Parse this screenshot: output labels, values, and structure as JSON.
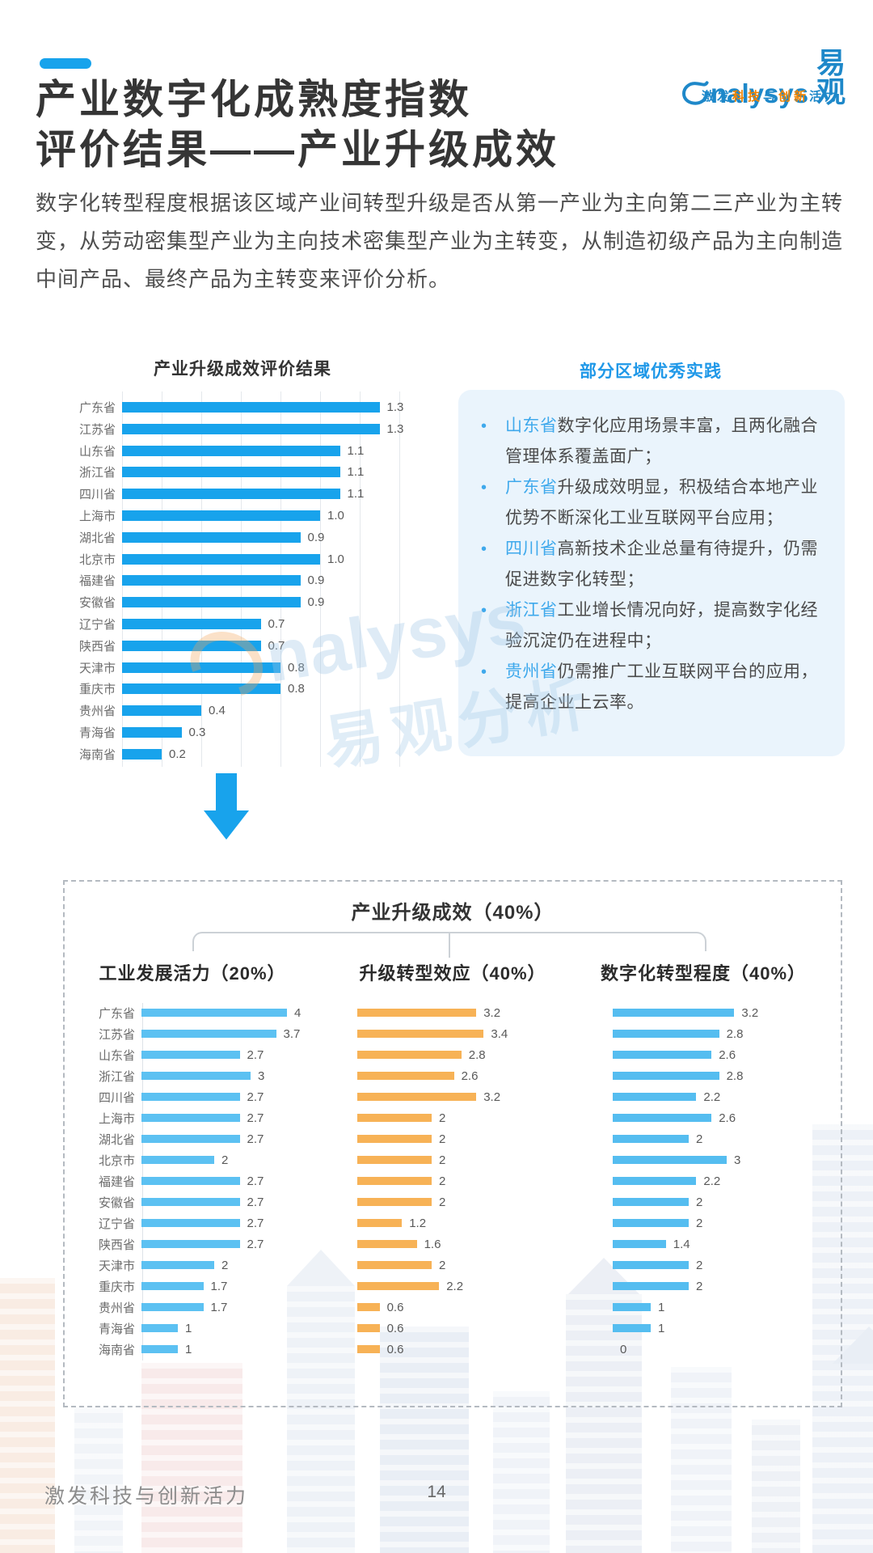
{
  "header": {
    "title_line1": "产业数字化成熟度指数",
    "title_line2": "评价结果——产业升级成效"
  },
  "logo": {
    "text_en": "nalysys",
    "text_cn": "易观",
    "tagline": [
      {
        "text": "激发",
        "color": "blue"
      },
      {
        "text": "科技",
        "color": "orange"
      },
      {
        "text": "与",
        "color": "blue"
      },
      {
        "text": "创新",
        "color": "orange"
      },
      {
        "text": "活力",
        "color": "blue"
      }
    ]
  },
  "intro": "数字化转型程度根据该区域产业间转型升级是否从第一产业为主向第二三产业为主转变，从劳动密集型产业为主向技术密集型产业为主转变，从制造初级产品为主向制造中间产品、最终产品为主转变来评价分析。",
  "practices": {
    "title": "部分区域优秀实践",
    "items": [
      {
        "highlight": "山东省",
        "text": "数字化应用场景丰富，且两化融合管理体系覆盖面广；"
      },
      {
        "highlight": "广东省",
        "text": "升级成效明显，积极结合本地产业优势不断深化工业互联网平台应用；"
      },
      {
        "highlight": "四川省",
        "text": "高新技术企业总量有待提升，仍需促进数字化转型；"
      },
      {
        "highlight": "浙江省",
        "text": "工业增长情况向好，提高数字化经验沉淀仍在进程中；"
      },
      {
        "highlight": "贵州省",
        "text": "仍需推广工业互联网平台的应用，提高企业上云率。"
      }
    ]
  },
  "breakdown": {
    "box_title": "产业升级成效（40%）",
    "column_titles": [
      "工业发展活力（20%）",
      "升级转型效应（40%）",
      "数字化转型程度（40%）"
    ]
  },
  "watermark": {
    "en": "nalysys",
    "cn": "易观分析"
  },
  "footer": {
    "slogan": "激发科技与创新活力",
    "page_number": "14"
  },
  "provinces": [
    "广东省",
    "江苏省",
    "山东省",
    "浙江省",
    "四川省",
    "上海市",
    "湖北省",
    "北京市",
    "福建省",
    "安徽省",
    "辽宁省",
    "陕西省",
    "天津市",
    "重庆市",
    "贵州省",
    "青海省",
    "海南省"
  ],
  "chart_data": [
    {
      "id": "evaluation",
      "type": "bar",
      "orientation": "horizontal",
      "title": "产业升级成效评价结果",
      "categories": [
        "广东省",
        "江苏省",
        "山东省",
        "浙江省",
        "四川省",
        "上海市",
        "湖北省",
        "北京市",
        "福建省",
        "安徽省",
        "辽宁省",
        "陕西省",
        "天津市",
        "重庆市",
        "贵州省",
        "青海省",
        "海南省"
      ],
      "values": [
        1.3,
        1.3,
        1.1,
        1.1,
        1.1,
        1.0,
        0.9,
        1.0,
        0.9,
        0.9,
        0.7,
        0.7,
        0.8,
        0.8,
        0.4,
        0.3,
        0.2
      ],
      "value_labels": [
        "1.3",
        "1.3",
        "1.1",
        "1.1",
        "1.1",
        "1.0",
        "0.9",
        "1.0",
        "0.9",
        "0.9",
        "0.7",
        "0.7",
        "0.8",
        "0.8",
        "0.4",
        "0.3",
        "0.2"
      ],
      "xlim": [
        0,
        1.4
      ],
      "grid": true,
      "bar_color": "#18a3ec",
      "show_category_labels": true
    },
    {
      "id": "industry_vitality",
      "type": "bar",
      "orientation": "horizontal",
      "title": "工业发展活力（20%）",
      "categories": [
        "广东省",
        "江苏省",
        "山东省",
        "浙江省",
        "四川省",
        "上海市",
        "湖北省",
        "北京市",
        "福建省",
        "安徽省",
        "辽宁省",
        "陕西省",
        "天津市",
        "重庆市",
        "贵州省",
        "青海省",
        "海南省"
      ],
      "values": [
        4,
        3.7,
        2.7,
        3,
        2.7,
        2.7,
        2.7,
        2,
        2.7,
        2.7,
        2.7,
        2.7,
        2,
        1.7,
        1.7,
        1,
        1
      ],
      "value_labels": [
        "4",
        "3.7",
        "2.7",
        "3",
        "2.7",
        "2.7",
        "2.7",
        "2",
        "2.7",
        "2.7",
        "2.7",
        "2.7",
        "2",
        "1.7",
        "1.7",
        "1",
        "1"
      ],
      "xlim": [
        0,
        4.3
      ],
      "grid": false,
      "bar_color": "#5cc1f2",
      "show_category_labels": true
    },
    {
      "id": "upgrade_transformation",
      "type": "bar",
      "orientation": "horizontal",
      "title": "升级转型效应（40%）",
      "categories": [
        "广东省",
        "江苏省",
        "山东省",
        "浙江省",
        "四川省",
        "上海市",
        "湖北省",
        "北京市",
        "福建省",
        "安徽省",
        "辽宁省",
        "陕西省",
        "天津市",
        "重庆市",
        "贵州省",
        "青海省",
        "海南省"
      ],
      "values": [
        3.2,
        3.4,
        2.8,
        2.6,
        3.2,
        2,
        2,
        2,
        2,
        2,
        1.2,
        1.6,
        2,
        2.2,
        0.6,
        0.6,
        0.6
      ],
      "value_labels": [
        "3.2",
        "3.4",
        "2.8",
        "2.6",
        "3.2",
        "2",
        "2",
        "2",
        "2",
        "2",
        "1.2",
        "1.6",
        "2",
        "2.2",
        "0.6",
        "0.6",
        "0.6"
      ],
      "xlim": [
        0,
        4.3
      ],
      "grid": false,
      "bar_color": "#f7b256",
      "show_category_labels": false
    },
    {
      "id": "digital_transformation",
      "type": "bar",
      "orientation": "horizontal",
      "title": "数字化转型程度（40%）",
      "categories": [
        "广东省",
        "江苏省",
        "山东省",
        "浙江省",
        "四川省",
        "上海市",
        "湖北省",
        "北京市",
        "福建省",
        "安徽省",
        "辽宁省",
        "陕西省",
        "天津市",
        "重庆市",
        "贵州省",
        "青海省",
        "海南省"
      ],
      "values": [
        3.2,
        2.8,
        2.6,
        2.8,
        2.2,
        2.6,
        2,
        3,
        2.2,
        2,
        2,
        1.4,
        2,
        2,
        1,
        1,
        0
      ],
      "value_labels": [
        "3.2",
        "2.8",
        "2.6",
        "2.8",
        "2.2",
        "2.6",
        "2",
        "3",
        "2.2",
        "2",
        "2",
        "1.4",
        "2",
        "2",
        "1",
        "1",
        "0"
      ],
      "xlim": [
        0,
        4.3
      ],
      "grid": false,
      "bar_color": "#55bdf0",
      "show_category_labels": false
    }
  ],
  "colors": {
    "accent_blue": "#18a3ec",
    "light_blue_bar": "#5cc1f2",
    "orange_bar": "#f7b256",
    "right_blue_bar": "#55bdf0",
    "panel_bg": "#eaf4fc",
    "panel_title_blue": "#1f98e8",
    "highlight_blue": "#3fa9ec",
    "logo_blue": "#1e88c9",
    "logo_orange": "#f08300"
  }
}
